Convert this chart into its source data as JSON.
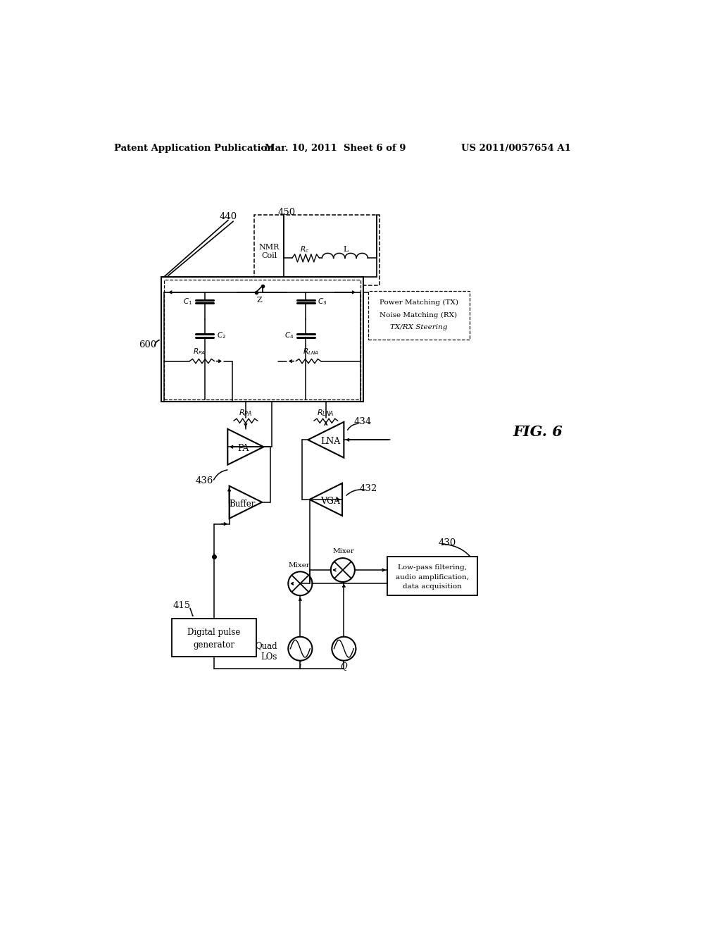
{
  "bg": "#ffffff",
  "header_left": "Patent Application Publication",
  "header_mid": "Mar. 10, 2011  Sheet 6 of 9",
  "header_right": "US 2011/0057654 A1",
  "fig_label": "FIG. 6"
}
